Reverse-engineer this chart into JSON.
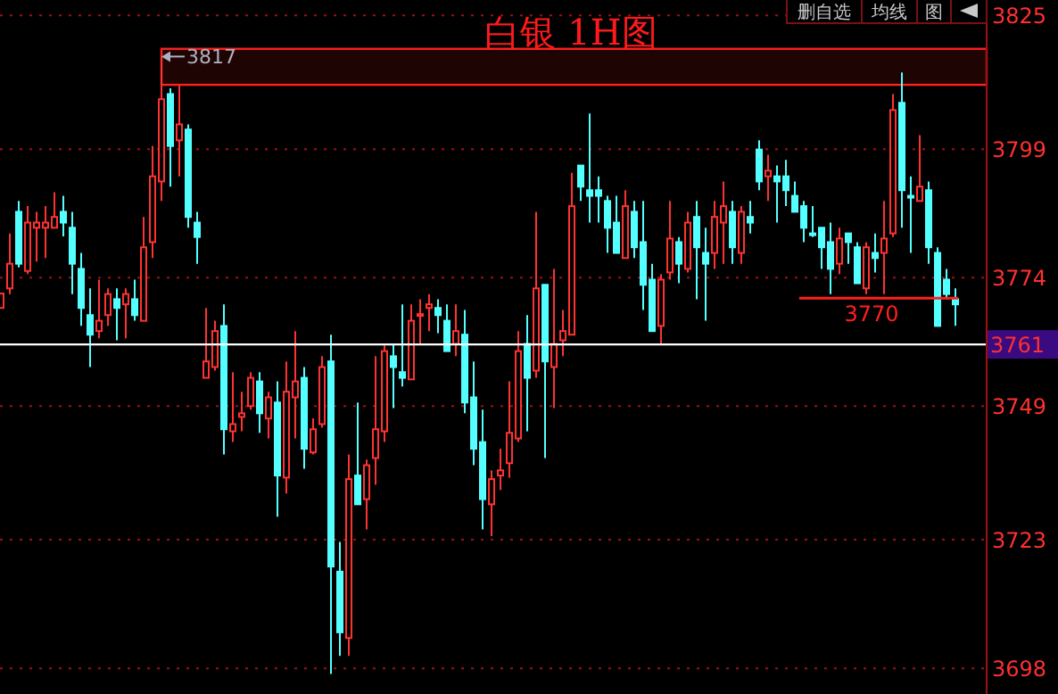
{
  "chart_data": {
    "type": "candlestick",
    "title": "白银  1H图",
    "categories": [
      null,
      null,
      null,
      null,
      null,
      null,
      null,
      null,
      null,
      null,
      null,
      null,
      null,
      null,
      null,
      null,
      null,
      null,
      null,
      null,
      null,
      null,
      null,
      null,
      null,
      null,
      null,
      null,
      null,
      null,
      null,
      null,
      null,
      null,
      null,
      null,
      null,
      null,
      null,
      null,
      null,
      null,
      null,
      null,
      null,
      null,
      null,
      null,
      null,
      null,
      null,
      null,
      null,
      null,
      null,
      null,
      null,
      null,
      null,
      null,
      null,
      null,
      null,
      null,
      null,
      null,
      null,
      null,
      null,
      null,
      null,
      null,
      null,
      null,
      null,
      null,
      null,
      null,
      null,
      null,
      null,
      null,
      null,
      null,
      null,
      null,
      null,
      null,
      null,
      null,
      null,
      null,
      null,
      null,
      null,
      null,
      null,
      null,
      null,
      null,
      null,
      null,
      null,
      null,
      null,
      null,
      null,
      null
    ],
    "ohlc": [
      [
        3768.1,
        3771,
        3768,
        3770.9
      ],
      [
        3771.9,
        3782.6,
        3770.8,
        3776.7
      ],
      [
        3786.8,
        3788.9,
        3776.0,
        3776.7
      ],
      [
        3775.3,
        3787.9,
        3774.7,
        3784.7
      ],
      [
        3783.7,
        3786.8,
        3777.1,
        3784.7
      ],
      [
        3783.7,
        3787.9,
        3777.8,
        3784.7
      ],
      [
        3783.7,
        3790.6,
        3783.7,
        3785.8
      ],
      [
        3786.8,
        3789.9,
        3782.0,
        3784.7
      ],
      [
        3783.7,
        3786.8,
        3770.8,
        3776.7
      ],
      [
        3775.7,
        3778.8,
        3764.6,
        3768.1
      ],
      [
        3766.7,
        3771.9,
        3756.6,
        3762.9
      ],
      [
        3763.6,
        3773.6,
        3762.2,
        3765.6
      ],
      [
        3766.7,
        3771.9,
        3764.6,
        3770.8
      ],
      [
        3769.8,
        3771.9,
        3761.8,
        3768.1
      ],
      [
        3768.8,
        3771.9,
        3762.2,
        3770.8
      ],
      [
        3769.8,
        3773.6,
        3765.6,
        3766.7
      ],
      [
        3765.6,
        3785.8,
        3765.6,
        3779.9
      ],
      [
        3780.9,
        3799.6,
        3777.8,
        3793.7
      ],
      [
        3792.7,
        3817,
        3788.9,
        3808.7
      ],
      [
        3809.7,
        3810.8,
        3791.7,
        3799.6
      ],
      [
        3800.7,
        3811.4,
        3793.7,
        3803.8
      ],
      [
        3802.8,
        3803.8,
        3783.7,
        3785.8
      ],
      [
        3784.7,
        3786.8,
        3776.7,
        3781.9
      ],
      [
        3754.5,
        3768.1,
        3754.5,
        3757.7
      ],
      [
        3756.6,
        3765.6,
        3755.9,
        3763.6
      ],
      [
        3764.6,
        3768.8,
        3739.6,
        3744.5
      ],
      [
        3744.1,
        3755.6,
        3742.0,
        3745.5
      ],
      [
        3746.9,
        3751.8,
        3744.1,
        3747.6
      ],
      [
        3749.0,
        3755.6,
        3748.3,
        3754.5
      ],
      [
        3753.8,
        3755.6,
        3743.8,
        3747.6
      ],
      [
        3746.6,
        3751.8,
        3742.7,
        3750.7
      ],
      [
        3749.7,
        3753.8,
        3727.5,
        3735.5
      ],
      [
        3735.1,
        3757.7,
        3732.0,
        3751.8
      ],
      [
        3750.7,
        3763.6,
        3742.7,
        3753.8
      ],
      [
        3754.5,
        3756.6,
        3736.8,
        3740.7
      ],
      [
        3740.0,
        3746.6,
        3739.6,
        3744.5
      ],
      [
        3745.5,
        3758.7,
        3744.8,
        3756.6
      ],
      [
        3757.7,
        3762.9,
        3696.9,
        3717.8
      ],
      [
        3716.8,
        3722.6,
        3700.4,
        3705.0
      ],
      [
        3703.9,
        3739.6,
        3700.4,
        3734.8
      ],
      [
        3735.5,
        3749.7,
        3729.9,
        3729.9
      ],
      [
        3730.9,
        3738.6,
        3725.0,
        3737.5
      ],
      [
        3738.9,
        3758.7,
        3733.7,
        3744.5
      ],
      [
        3744.1,
        3760.8,
        3742.0,
        3759.7
      ],
      [
        3758.7,
        3761.1,
        3748.6,
        3756.6
      ],
      [
        3755.6,
        3768.8,
        3752.8,
        3754.5
      ],
      [
        3754.2,
        3768.8,
        3754.2,
        3765.6
      ],
      [
        3766.7,
        3769.8,
        3761.1,
        3766.9
      ],
      [
        3768.1,
        3770.8,
        3763.6,
        3768.8
      ],
      [
        3768.1,
        3769.8,
        3763.2,
        3766.7
      ],
      [
        3765.6,
        3768.8,
        3759.7,
        3759.7
      ],
      [
        3761.1,
        3768.8,
        3758.7,
        3763.6
      ],
      [
        3762.9,
        3767.7,
        3747.6,
        3749.7
      ],
      [
        3750.7,
        3757.7,
        3737.5,
        3740.7
      ],
      [
        3742.0,
        3748.3,
        3725.0,
        3730.9
      ],
      [
        3729.9,
        3736.5,
        3723.7,
        3734.8
      ],
      [
        3735.5,
        3740.7,
        3732.7,
        3736.5
      ],
      [
        3737.9,
        3753.8,
        3735.1,
        3743.8
      ],
      [
        3742.7,
        3763.6,
        3742.0,
        3759.7
      ],
      [
        3761.1,
        3766.7,
        3744.1,
        3754.5
      ],
      [
        3755.9,
        3786.8,
        3754.5,
        3771.9
      ],
      [
        3772.6,
        3772.6,
        3738.9,
        3757.7
      ],
      [
        3756.6,
        3775.7,
        3748.6,
        3761.1
      ],
      [
        3761.8,
        3767.7,
        3758.7,
        3763.6
      ],
      [
        3762.9,
        3794.4,
        3762.9,
        3787.9
      ],
      [
        3795.8,
        3795.8,
        3788.9,
        3791.7
      ],
      [
        3791.0,
        3805.9,
        3784.7,
        3789.9
      ],
      [
        3791.0,
        3793.7,
        3784.7,
        3789.9
      ],
      [
        3788.9,
        3789.9,
        3778.8,
        3783.7
      ],
      [
        3784.7,
        3789.9,
        3778.8,
        3778.8
      ],
      [
        3777.8,
        3791.0,
        3777.8,
        3787.9
      ],
      [
        3786.8,
        3788.9,
        3777.8,
        3779.9
      ],
      [
        3780.9,
        3788.9,
        3767.7,
        3772.6
      ],
      [
        3773.6,
        3776.7,
        3763.6,
        3763.6
      ],
      [
        3764.6,
        3774.7,
        3761.1,
        3773.6
      ],
      [
        3775.0,
        3788.9,
        3773.6,
        3781.6
      ],
      [
        3780.9,
        3781.9,
        3772.9,
        3776.7
      ],
      [
        3775.7,
        3786.8,
        3775.0,
        3784.7
      ],
      [
        3785.8,
        3788.9,
        3769.8,
        3779.9
      ],
      [
        3778.8,
        3783.7,
        3765.6,
        3776.7
      ],
      [
        3778.8,
        3788.9,
        3775.7,
        3785.8
      ],
      [
        3784.7,
        3792.7,
        3776.7,
        3787.9
      ],
      [
        3786.8,
        3788.9,
        3776.7,
        3779.9
      ],
      [
        3778.8,
        3787.9,
        3776.7,
        3786.8
      ],
      [
        3785.8,
        3788.9,
        3782.6,
        3784.7
      ],
      [
        3798.9,
        3800.7,
        3791.0,
        3792.7
      ],
      [
        3793.7,
        3797.9,
        3788.9,
        3794.8
      ],
      [
        3793.7,
        3795.8,
        3784.7,
        3792.7
      ],
      [
        3793.7,
        3796.9,
        3787.9,
        3791.0
      ],
      [
        3789.9,
        3792.7,
        3786.8,
        3786.8
      ],
      [
        3787.9,
        3788.9,
        3780.9,
        3783.7
      ],
      [
        3782.6,
        3787.9,
        3781.9,
        3782.3
      ],
      [
        3783.7,
        3783.7,
        3775.7,
        3779.9
      ],
      [
        3780.9,
        3784.7,
        3770.8,
        3775.7
      ],
      [
        3776.7,
        3783.7,
        3774.7,
        3781.6
      ],
      [
        3782.6,
        3782.6,
        3776.7,
        3780.9
      ],
      [
        3779.9,
        3780.9,
        3772.9,
        3772.9
      ],
      [
        3771.9,
        3780.9,
        3770.8,
        3779.9
      ],
      [
        3778.8,
        3782.6,
        3775.0,
        3777.8
      ],
      [
        3778.8,
        3788.9,
        3770.8,
        3781.6
      ],
      [
        3782.6,
        3809.7,
        3781.9,
        3806.6
      ],
      [
        3808.0,
        3813.9,
        3783.7,
        3791.0
      ],
      [
        3789.9,
        3793.7,
        3778.8,
        3789.6
      ],
      [
        3788.9,
        3801.7,
        3788.9,
        3791.7
      ],
      [
        3791.0,
        3792.7,
        3776.7,
        3779.9
      ],
      [
        3778.8,
        3779.9,
        3764.6,
        3764.6
      ],
      [
        3773.6,
        3775.7,
        3769.8,
        3770.8
      ],
      [
        3769.8,
        3771.9,
        3764.6,
        3768.8
      ]
    ],
    "colors": [
      "#ff3232",
      "#ff3232",
      "#54ffff",
      "#ff3232",
      "#ff3232",
      "#ff3232",
      "#ff3232",
      "#54ffff",
      "#54ffff",
      "#54ffff",
      "#54ffff",
      "#ff3232",
      "#ff3232",
      "#54ffff",
      "#ff3232",
      "#54ffff",
      "#ff3232",
      "#ff3232",
      "#ff3232",
      "#54ffff",
      "#ff3232",
      "#54ffff",
      "#54ffff",
      "#ff3232",
      "#ff3232",
      "#54ffff",
      "#ff3232",
      "#ff3232",
      "#ff3232",
      "#54ffff",
      "#ff3232",
      "#54ffff",
      "#ff3232",
      "#ff3232",
      "#54ffff",
      "#ff3232",
      "#ff3232",
      "#54ffff",
      "#54ffff",
      "#ff3232",
      "#54ffff",
      "#ff3232",
      "#ff3232",
      "#ff3232",
      "#54ffff",
      "#54ffff",
      "#ff3232",
      "#ff3232",
      "#ff3232",
      "#54ffff",
      "#54ffff",
      "#ff3232",
      "#54ffff",
      "#54ffff",
      "#54ffff",
      "#ff3232",
      "#ff3232",
      "#ff3232",
      "#ff3232",
      "#54ffff",
      "#ff3232",
      "#54ffff",
      "#ff3232",
      "#ff3232",
      "#ff3232",
      "#54ffff",
      "#54ffff",
      "#54ffff",
      "#54ffff",
      "#54ffff",
      "#ff3232",
      "#54ffff",
      "#54ffff",
      "#54ffff",
      "#ff3232",
      "#ff3232",
      "#54ffff",
      "#ff3232",
      "#54ffff",
      "#54ffff",
      "#ff3232",
      "#ff3232",
      "#54ffff",
      "#ff3232",
      "#54ffff",
      "#54ffff",
      "#ff3232",
      "#54ffff",
      "#54ffff",
      "#54ffff",
      "#54ffff",
      "#54ffff",
      "#54ffff",
      "#54ffff",
      "#ff3232",
      "#54ffff",
      "#54ffff",
      "#ff3232",
      "#54ffff",
      "#ff3232",
      "#ff3232",
      "#54ffff",
      "#54ffff",
      "#ff3232",
      "#54ffff",
      "#54ffff",
      "#54ffff",
      "#54ffff"
    ],
    "ylim": [
      3693,
      3828
    ],
    "yticks": [
      3825,
      3799,
      3774,
      3749,
      3723,
      3698
    ],
    "grid": "y",
    "tick_labels": "y",
    "ref_lines": [
      {
        "axis": "y",
        "value": 3761,
        "label": "3761",
        "color": "#ffffff"
      },
      {
        "axis": "y",
        "value": 3770,
        "label": "3770",
        "color": "#ff2020"
      }
    ],
    "bands": [
      {
        "axis": "y",
        "from": 3811.5,
        "to": 3818.5,
        "color": "#ff2020"
      }
    ],
    "annotations": [
      "3817",
      "删自选",
      "均线",
      "图"
    ]
  }
}
